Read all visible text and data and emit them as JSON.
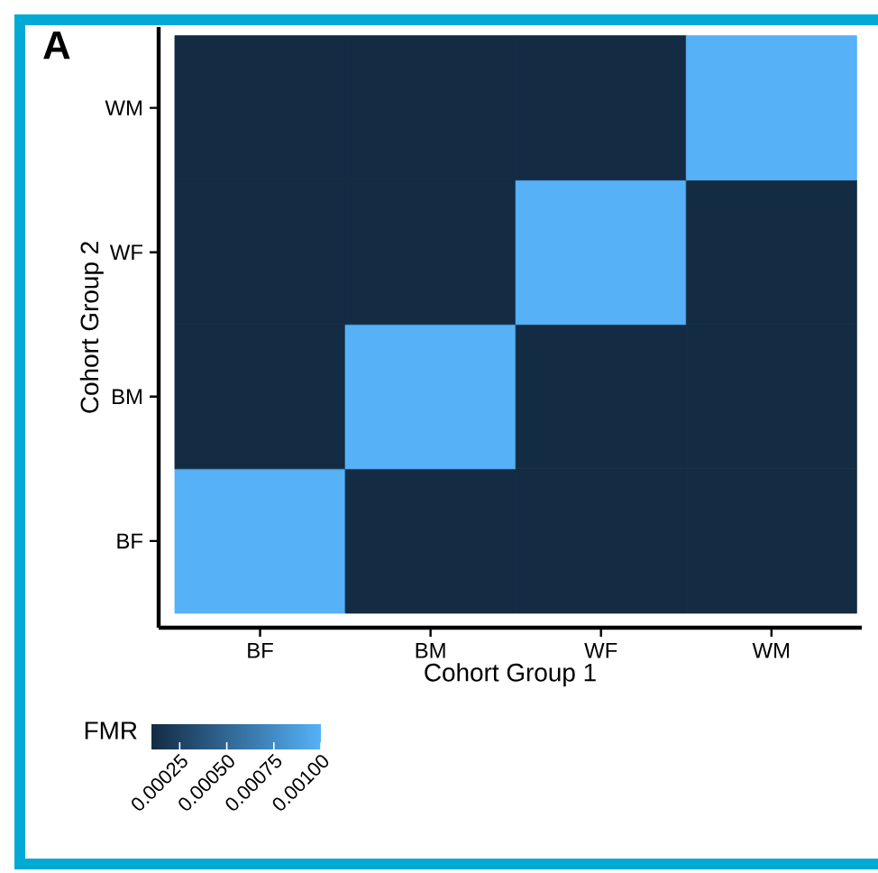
{
  "chart_data": {
    "type": "heatmap",
    "title": "A",
    "xlabel": "Cohort Group 1",
    "ylabel": "Cohort Group 2",
    "clabel": "FMR",
    "categories": [
      "BF",
      "BM",
      "WF",
      "WM"
    ],
    "y_categories": [
      "WM",
      "WF",
      "BM",
      "BF"
    ],
    "cells": [
      [
        0.0001,
        0.0001,
        0.0001,
        0.001
      ],
      [
        0.0001,
        0.0001,
        0.001,
        0.0001
      ],
      [
        0.0001,
        0.001,
        0.0001,
        0.0001
      ],
      [
        0.001,
        0.0001,
        0.0001,
        0.0001
      ]
    ],
    "clim": [
      0.0001,
      0.001
    ],
    "cticks": [
      {
        "value": 0.00025,
        "label": "0.00025"
      },
      {
        "value": 0.0005,
        "label": "0.00050"
      },
      {
        "value": 0.00075,
        "label": "0.00075"
      },
      {
        "value": 0.001,
        "label": "0.00100"
      }
    ],
    "grid": false
  }
}
